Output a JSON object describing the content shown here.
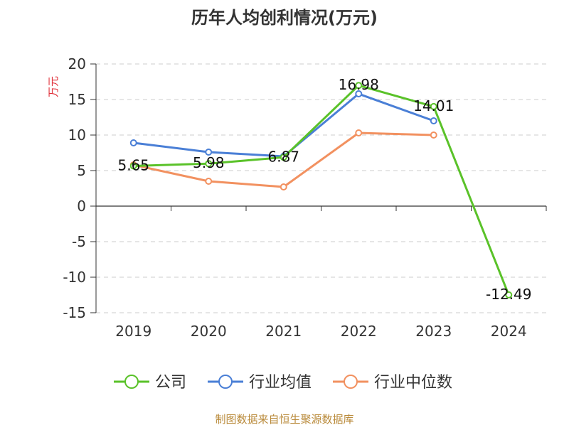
{
  "chart_data": {
    "type": "line",
    "title": "历年人均创利情况(万元)",
    "ylabel": "万元",
    "xlabel": "",
    "categories": [
      "2019",
      "2020",
      "2021",
      "2022",
      "2023",
      "2024"
    ],
    "ylim": [
      -15,
      20
    ],
    "yticks": [
      20,
      15,
      10,
      5,
      0,
      -5,
      -10,
      -15
    ],
    "grid": true,
    "legend_position": "bottom",
    "series": [
      {
        "name": "公司",
        "color": "#5ac229",
        "values": [
          5.65,
          5.98,
          6.87,
          16.98,
          14.01,
          -12.49
        ],
        "labels": [
          "5.65",
          "5.98",
          "6.87",
          "16.98",
          "14.01",
          "-12.49"
        ]
      },
      {
        "name": "行业均值",
        "color": "#4a7fd6",
        "values": [
          8.9,
          7.6,
          7.0,
          15.8,
          12.0,
          null
        ]
      },
      {
        "name": "行业中位数",
        "color": "#f29160",
        "values": [
          5.8,
          3.5,
          2.7,
          10.3,
          10.0,
          null
        ]
      }
    ]
  },
  "footer": {
    "source": "制图数据来自恒生聚源数据库"
  }
}
